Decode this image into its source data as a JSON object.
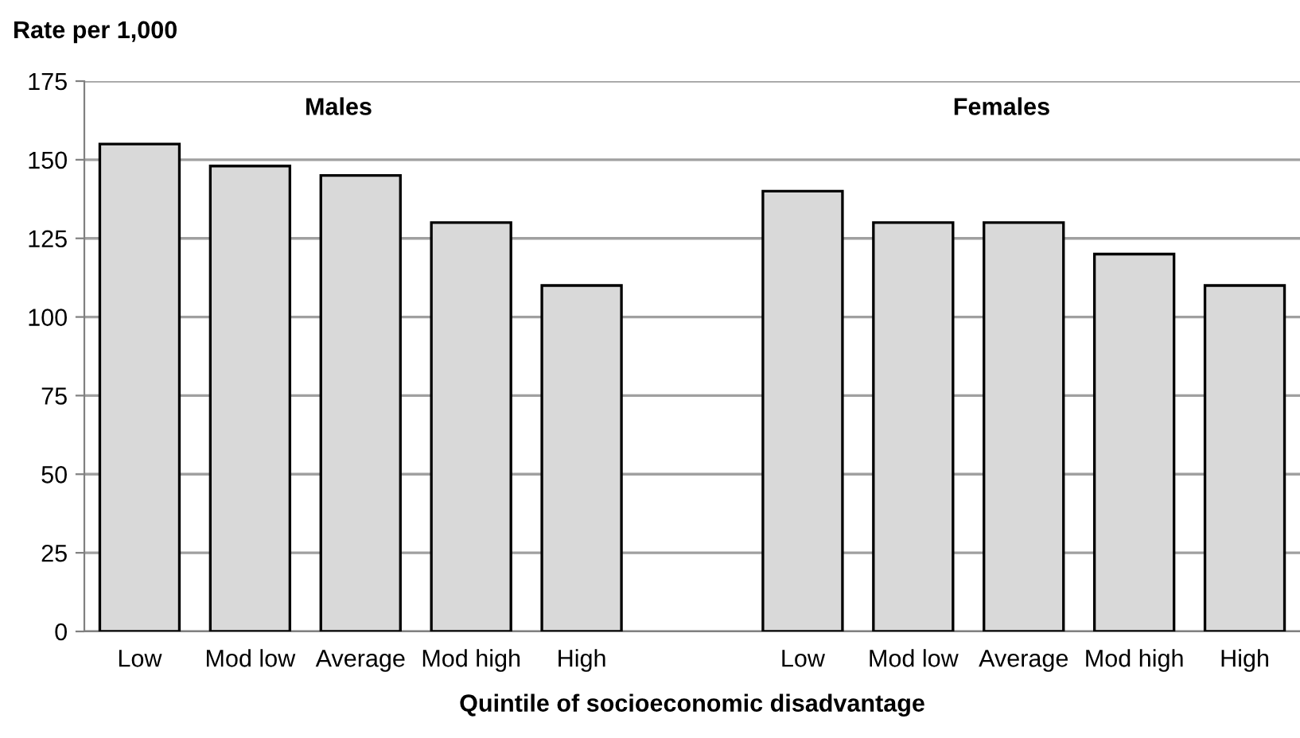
{
  "chart_data": {
    "type": "bar",
    "ylabel": "Rate per 1,000",
    "xlabel": "Quintile of socioeconomic disadvantage",
    "categories": [
      "Low",
      "Mod low",
      "Average",
      "Mod high",
      "High",
      null,
      "Low",
      "Mod low",
      "Average",
      "Mod high",
      "High"
    ],
    "values": [
      155,
      148,
      145,
      130,
      110,
      null,
      140,
      130,
      130,
      120,
      110
    ],
    "color": "#d9d9d9",
    "annotations": [
      "Males",
      "Females"
    ],
    "ylim": [
      0,
      175
    ],
    "yticks": [
      0,
      25,
      50,
      75,
      100,
      125,
      150,
      175
    ],
    "grid": "y",
    "legend": false
  }
}
